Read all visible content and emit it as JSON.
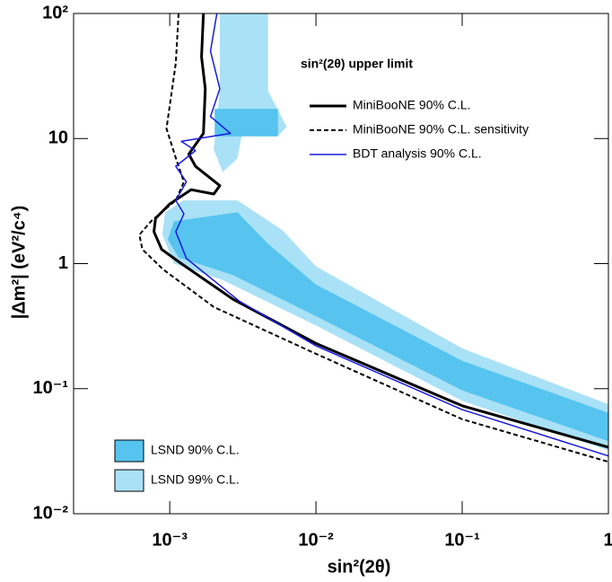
{
  "chart_data": {
    "type": "line",
    "x_label": "sin²(2θ)",
    "y_label": "|Δm²|  (eV²/c⁴)",
    "legend_title": "sin²(2θ) upper limit",
    "xlog": true,
    "ylog": true,
    "xlim": [
      0.00022,
      1
    ],
    "ylim": [
      0.01,
      100
    ],
    "xticks": [
      {
        "value": 0.001,
        "label": "10⁻³"
      },
      {
        "value": 0.01,
        "label": "10⁻²"
      },
      {
        "value": 0.1,
        "label": "10⁻¹"
      },
      1
    ],
    "yticks": [
      {
        "value": 0.01,
        "label": "10⁻²"
      },
      {
        "value": 0.1,
        "label": "10⁻¹"
      },
      1,
      10,
      {
        "value": 100,
        "label": "10²"
      }
    ],
    "regions": [
      {
        "name": "LSND 99% C.L.",
        "color": "#a9e1f6",
        "polygons": [
          {
            "x": [
              0.00093,
              0.00124,
              0.0029,
              0.0059,
              0.01,
              0.1,
              1,
              1,
              0.1,
              0.01,
              0.0023,
              0.00107,
              0.00089
            ],
            "y": [
              2.57,
              3.2,
              3.2,
              1.85,
              0.95,
              0.21,
              0.075,
              0.032,
              0.08,
              0.32,
              0.74,
              1,
              1.7
            ]
          },
          {
            "x": [
              0.0022,
              0.0047,
              0.0047,
              0.0063,
              0.0055,
              0.0031,
              0.0029,
              0.0023,
              0.002,
              0.0022
            ],
            "y": [
              100,
              100,
              24,
              12.4,
              10.5,
              10.5,
              6.9,
              5.4,
              8.2,
              24
            ]
          }
        ]
      },
      {
        "name": "LSND 90% C.L.",
        "color": "#56c4ef",
        "polygons": [
          {
            "x": [
              0.00107,
              0.0029,
              0.0047,
              0.01,
              0.1,
              1,
              1,
              0.1,
              0.01,
              0.0027,
              0.00115,
              0.00097
            ],
            "y": [
              2.18,
              2.57,
              1.44,
              0.68,
              0.167,
              0.064,
              0.038,
              0.097,
              0.38,
              0.81,
              1.12,
              1.56
            ]
          },
          {
            "x": [
              0.00203,
              0.0055,
              0.0055,
              0.00203
            ],
            "y": [
              17.3,
              17.3,
              10.4,
              10.4
            ]
          }
        ]
      }
    ],
    "series": [
      {
        "name": "MiniBooNE 90% C.L.",
        "color": "#000000",
        "dash": false,
        "width": 3,
        "x": [
          0.0017,
          0.00165,
          0.00175,
          0.0017,
          0.00135,
          0.0015,
          0.0022,
          0.002,
          0.0014,
          0.001,
          0.0008,
          0.00078,
          0.00088,
          0.0012,
          0.0027,
          0.01,
          0.1,
          1
        ],
        "y": [
          100,
          45,
          25,
          11,
          7.5,
          6,
          4.2,
          3.6,
          3.9,
          3.0,
          2.3,
          1.8,
          1.3,
          1.0,
          0.52,
          0.23,
          0.073,
          0.034
        ]
      },
      {
        "name": "MiniBooNE 90% C.L. sensitivity",
        "color": "#000000",
        "dash": true,
        "width": 2,
        "x": [
          0.00115,
          0.0011,
          0.00095,
          0.0011,
          0.00125,
          0.0011,
          0.00075,
          0.00062,
          0.00065,
          0.0009,
          0.002,
          0.01,
          0.1,
          1
        ],
        "y": [
          100,
          40,
          12,
          7,
          4.5,
          3.2,
          2.2,
          1.7,
          1.3,
          0.9,
          0.45,
          0.19,
          0.057,
          0.026
        ]
      },
      {
        "name": "BDT analysis 90% C.L.",
        "color": "#1a1adb",
        "dash": false,
        "width": 1.5,
        "x": [
          0.0021,
          0.0019,
          0.0022,
          0.0019,
          0.0026,
          0.0012,
          0.0015,
          0.0011,
          0.0013,
          0.0011,
          0.00125,
          0.0011,
          0.0013,
          0.003,
          0.01,
          0.1,
          1
        ],
        "y": [
          100,
          50,
          25,
          15,
          11,
          9.5,
          8,
          6,
          4.5,
          3.2,
          2.5,
          1.8,
          1.1,
          0.5,
          0.22,
          0.068,
          0.029
        ]
      }
    ]
  }
}
